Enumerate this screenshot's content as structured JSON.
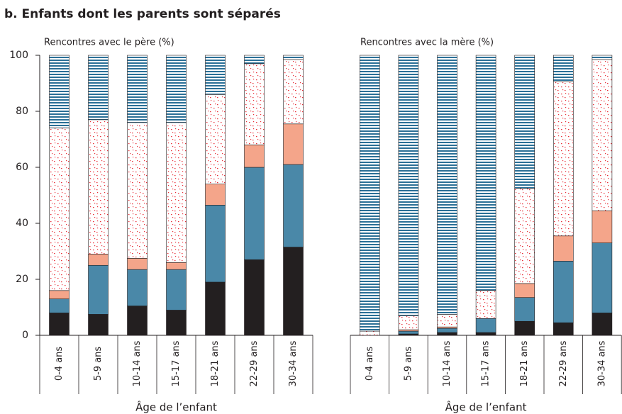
{
  "title": "b. Enfants dont les parents sont séparés",
  "chart_data": [
    {
      "type": "bar",
      "stacked": true,
      "subtitle": "Rencontres avec le père (%)",
      "x_label": "Âge de l’enfant",
      "categories": [
        "0-4 ans",
        "5-9 ans",
        "10-14 ans",
        "15-17 ans",
        "18-21 ans",
        "22-29 ans",
        "30-34 ans"
      ],
      "ylim": [
        0,
        100
      ],
      "yticks": [
        0,
        20,
        40,
        60,
        80,
        100
      ],
      "series": [
        {
          "color": "#231f20",
          "values": [
            8,
            7.5,
            10.5,
            9,
            19,
            27,
            31.5
          ]
        },
        {
          "color": "#4a88a8",
          "values": [
            5,
            17.5,
            13,
            14.5,
            27.5,
            33,
            29.5
          ]
        },
        {
          "color": "#f4a58a",
          "values": [
            3,
            4,
            4,
            2.5,
            7.5,
            8,
            14.5
          ]
        },
        {
          "color": "#e8303a",
          "pattern": "dots",
          "values": [
            58,
            48,
            48.5,
            50,
            32,
            29,
            23
          ]
        },
        {
          "color": "#2a6f96",
          "pattern": "stripes",
          "values": [
            26,
            23,
            24,
            24,
            14,
            3,
            1.5
          ]
        }
      ]
    },
    {
      "type": "bar",
      "stacked": true,
      "subtitle": "Rencontres avec la mère (%)",
      "x_label": "Âge de l’enfant",
      "categories": [
        "0-4 ans",
        "5-9 ans",
        "10-14 ans",
        "15-17 ans",
        "18-21 ans",
        "22-29 ans",
        "30-34 ans"
      ],
      "ylim": [
        0,
        100
      ],
      "series": [
        {
          "color": "#231f20",
          "values": [
            0,
            0.5,
            1,
            1,
            5,
            4.5,
            8
          ]
        },
        {
          "color": "#4a88a8",
          "values": [
            0,
            1,
            1.5,
            5,
            8.5,
            22,
            25
          ]
        },
        {
          "color": "#f4a58a",
          "values": [
            0,
            0.5,
            0.5,
            0,
            5,
            9,
            11.5
          ]
        },
        {
          "color": "#e8303a",
          "pattern": "dots",
          "values": [
            1.5,
            5,
            4.5,
            10,
            34,
            55,
            54
          ]
        },
        {
          "color": "#2a6f96",
          "pattern": "stripes",
          "values": [
            98.5,
            93,
            92.5,
            84,
            47.5,
            9.5,
            1.5
          ]
        }
      ]
    }
  ]
}
